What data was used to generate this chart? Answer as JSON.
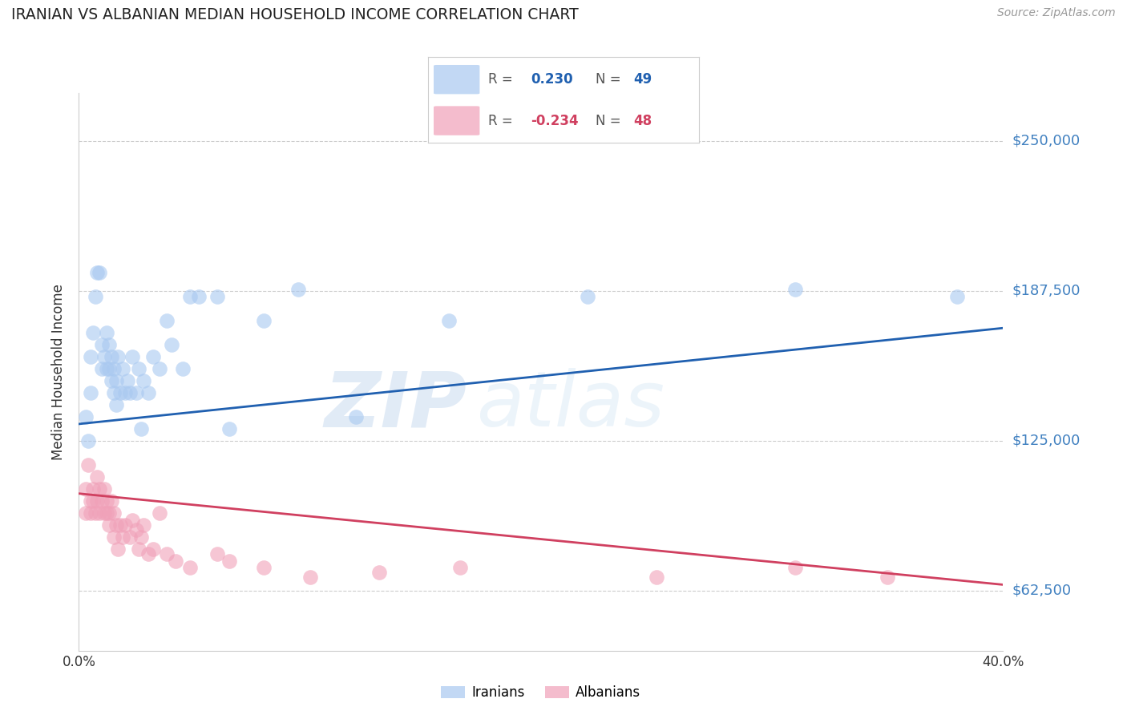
{
  "title": "IRANIAN VS ALBANIAN MEDIAN HOUSEHOLD INCOME CORRELATION CHART",
  "source": "Source: ZipAtlas.com",
  "ylabel": "Median Household Income",
  "yticks": [
    62500,
    125000,
    187500,
    250000
  ],
  "ytick_labels": [
    "$62,500",
    "$125,000",
    "$187,500",
    "$250,000"
  ],
  "xlim": [
    0.0,
    0.4
  ],
  "ylim": [
    37500,
    270000
  ],
  "watermark_line1": "ZIP",
  "watermark_line2": "atlas",
  "iranian_color": "#a8c8f0",
  "albanian_color": "#f0a0b8",
  "line_iranian_color": "#2060b0",
  "line_albanian_color": "#d04060",
  "background_color": "#ffffff",
  "grid_color": "#cccccc",
  "title_color": "#222222",
  "ytick_color": "#4080c0",
  "iranian_R": "0.230",
  "iranian_N": "49",
  "albanian_R": "-0.234",
  "albanian_N": "48",
  "iranian_line_x": [
    0.0,
    0.4
  ],
  "iranian_line_y": [
    132000,
    172000
  ],
  "albanian_line_x": [
    0.0,
    0.4
  ],
  "albanian_line_y": [
    103000,
    65000
  ],
  "iranian_points_x": [
    0.003,
    0.004,
    0.005,
    0.005,
    0.006,
    0.007,
    0.008,
    0.009,
    0.01,
    0.01,
    0.011,
    0.012,
    0.012,
    0.013,
    0.013,
    0.014,
    0.014,
    0.015,
    0.015,
    0.016,
    0.016,
    0.017,
    0.018,
    0.019,
    0.02,
    0.021,
    0.022,
    0.023,
    0.025,
    0.026,
    0.027,
    0.028,
    0.03,
    0.032,
    0.035,
    0.038,
    0.04,
    0.045,
    0.048,
    0.052,
    0.06,
    0.065,
    0.08,
    0.095,
    0.12,
    0.16,
    0.22,
    0.31,
    0.38
  ],
  "iranian_points_y": [
    135000,
    125000,
    160000,
    145000,
    170000,
    185000,
    195000,
    195000,
    155000,
    165000,
    160000,
    170000,
    155000,
    165000,
    155000,
    150000,
    160000,
    145000,
    155000,
    140000,
    150000,
    160000,
    145000,
    155000,
    145000,
    150000,
    145000,
    160000,
    145000,
    155000,
    130000,
    150000,
    145000,
    160000,
    155000,
    175000,
    165000,
    155000,
    185000,
    185000,
    185000,
    130000,
    175000,
    188000,
    135000,
    175000,
    185000,
    188000,
    185000
  ],
  "albanian_points_x": [
    0.003,
    0.003,
    0.004,
    0.005,
    0.005,
    0.006,
    0.006,
    0.007,
    0.008,
    0.008,
    0.009,
    0.009,
    0.01,
    0.011,
    0.011,
    0.012,
    0.012,
    0.013,
    0.013,
    0.014,
    0.015,
    0.015,
    0.016,
    0.017,
    0.018,
    0.019,
    0.02,
    0.022,
    0.023,
    0.025,
    0.026,
    0.027,
    0.028,
    0.03,
    0.032,
    0.035,
    0.038,
    0.042,
    0.048,
    0.06,
    0.065,
    0.08,
    0.1,
    0.13,
    0.165,
    0.25,
    0.31,
    0.35
  ],
  "albanian_points_y": [
    105000,
    95000,
    115000,
    100000,
    95000,
    100000,
    105000,
    95000,
    100000,
    110000,
    95000,
    105000,
    100000,
    95000,
    105000,
    95000,
    100000,
    90000,
    95000,
    100000,
    85000,
    95000,
    90000,
    80000,
    90000,
    85000,
    90000,
    85000,
    92000,
    88000,
    80000,
    85000,
    90000,
    78000,
    80000,
    95000,
    78000,
    75000,
    72000,
    78000,
    75000,
    72000,
    68000,
    70000,
    72000,
    68000,
    72000,
    68000
  ]
}
